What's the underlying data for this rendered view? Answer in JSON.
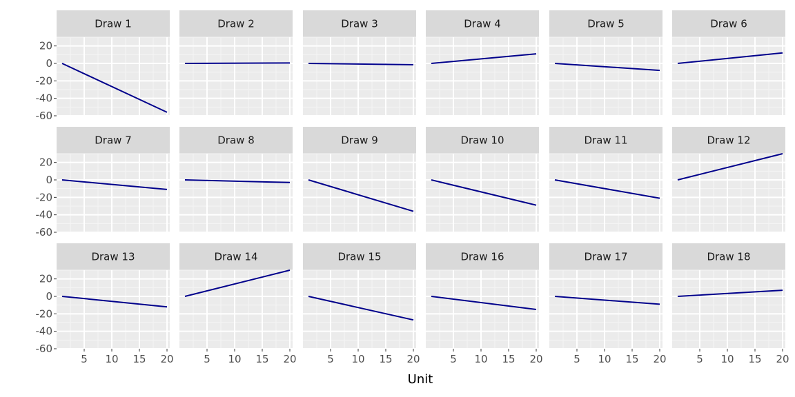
{
  "chart_data": {
    "type": "line",
    "layout": "facet-grid",
    "nrow": 3,
    "ncol": 6,
    "xlabel": "Unit",
    "ylabel": "",
    "xlim": [
      0,
      20.5
    ],
    "ylim": [
      -60,
      30
    ],
    "x_ticks": [
      5,
      10,
      15,
      20
    ],
    "y_ticks": [
      20,
      0,
      -20,
      -40,
      -60
    ],
    "x_tick_labels": [
      "5",
      "10",
      "15",
      "20"
    ],
    "y_tick_labels": [
      "20",
      "0",
      "-20",
      "-40",
      "-60"
    ],
    "grid": true,
    "colors": {
      "line": "#00008b",
      "panel_bg": "#ebebeb",
      "strip_bg": "#d9d9d9",
      "grid_major": "#ffffff",
      "grid_minor": "#f5f5f5"
    },
    "panels": [
      {
        "title": "Draw 1",
        "x": [
          1,
          20
        ],
        "y": [
          0,
          -56
        ]
      },
      {
        "title": "Draw 2",
        "x": [
          1,
          20
        ],
        "y": [
          0,
          0.5
        ]
      },
      {
        "title": "Draw 3",
        "x": [
          1,
          20
        ],
        "y": [
          0,
          -1.5
        ]
      },
      {
        "title": "Draw 4",
        "x": [
          1,
          20
        ],
        "y": [
          0,
          11
        ]
      },
      {
        "title": "Draw 5",
        "x": [
          1,
          20
        ],
        "y": [
          0,
          -8
        ]
      },
      {
        "title": "Draw 6",
        "x": [
          1,
          20
        ],
        "y": [
          0,
          12
        ]
      },
      {
        "title": "Draw 7",
        "x": [
          1,
          20
        ],
        "y": [
          0,
          -11
        ]
      },
      {
        "title": "Draw 8",
        "x": [
          1,
          20
        ],
        "y": [
          0,
          -3
        ]
      },
      {
        "title": "Draw 9",
        "x": [
          1,
          20
        ],
        "y": [
          0,
          -36
        ]
      },
      {
        "title": "Draw 10",
        "x": [
          1,
          20
        ],
        "y": [
          0,
          -29
        ]
      },
      {
        "title": "Draw 11",
        "x": [
          1,
          20
        ],
        "y": [
          0,
          -21
        ]
      },
      {
        "title": "Draw 12",
        "x": [
          1,
          20
        ],
        "y": [
          0,
          30
        ]
      },
      {
        "title": "Draw 13",
        "x": [
          1,
          20
        ],
        "y": [
          0,
          -12
        ]
      },
      {
        "title": "Draw 14",
        "x": [
          1,
          20
        ],
        "y": [
          0,
          30
        ]
      },
      {
        "title": "Draw 15",
        "x": [
          1,
          20
        ],
        "y": [
          0,
          -27
        ]
      },
      {
        "title": "Draw 16",
        "x": [
          1,
          20
        ],
        "y": [
          0,
          -15
        ]
      },
      {
        "title": "Draw 17",
        "x": [
          1,
          20
        ],
        "y": [
          0,
          -9
        ]
      },
      {
        "title": "Draw 18",
        "x": [
          1,
          20
        ],
        "y": [
          0,
          7
        ]
      }
    ]
  }
}
